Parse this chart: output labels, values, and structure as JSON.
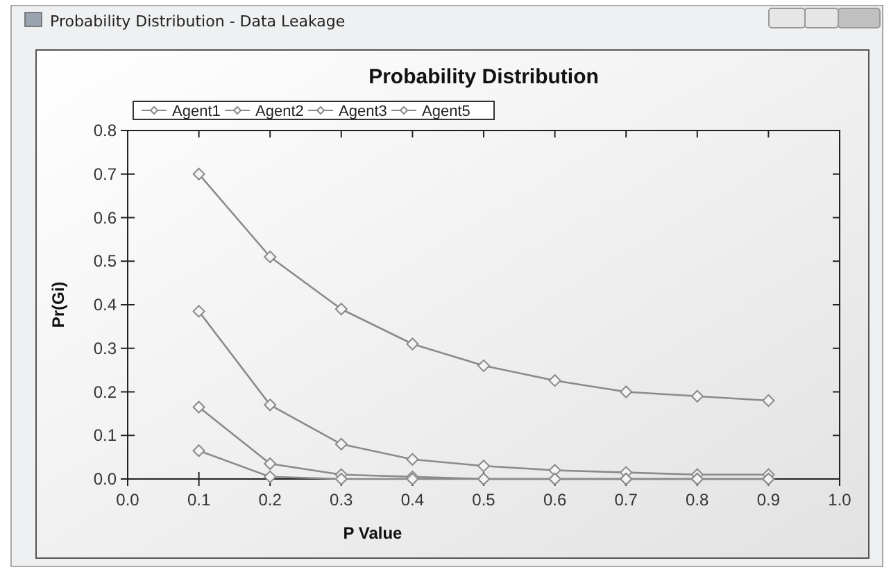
{
  "chart_data": {
    "type": "line",
    "title": "Probability Distribution",
    "xlabel": "P Value",
    "ylabel": "Pr(Gi)",
    "annotations": [
      "Probability Distribution - Data Leakage"
    ],
    "x": [
      0.1,
      0.2,
      0.3,
      0.4,
      0.5,
      0.6,
      0.7,
      0.8,
      0.9
    ],
    "series": [
      {
        "name": "Agent1",
        "color": "#8a8a8a",
        "values": [
          0.7,
          0.51,
          0.39,
          0.31,
          0.26,
          0.226,
          0.2,
          0.19,
          0.18
        ]
      },
      {
        "name": "Agent2",
        "color": "#8a8a8a",
        "values": [
          0.385,
          0.17,
          0.08,
          0.045,
          0.03,
          0.02,
          0.015,
          0.01,
          0.01
        ]
      },
      {
        "name": "Agent3",
        "color": "#8a8a8a",
        "values": [
          0.165,
          0.035,
          0.01,
          0.005,
          0,
          0,
          0,
          0,
          0
        ]
      },
      {
        "name": "Agent5",
        "color": "#8a8a8a",
        "values": [
          0.065,
          0.005,
          0,
          0,
          0,
          0,
          0,
          0,
          0
        ]
      }
    ],
    "xlim": [
      0,
      1
    ],
    "ylim": [
      0,
      0.8
    ],
    "xticks": [
      {
        "value": 0,
        "label": "0.0"
      },
      0.1,
      0.2,
      0.3,
      0.4,
      0.5,
      0.6,
      0.7,
      0.8,
      0.9,
      {
        "value": 1,
        "label": "1.0"
      }
    ],
    "yticks": [
      {
        "value": 0,
        "label": "0.0"
      },
      0.1,
      0.2,
      0.3,
      0.4,
      0.5,
      0.6,
      0.7,
      0.8
    ],
    "grid": false,
    "legend": "top",
    "marker": "diamond",
    "line_style": "solid"
  }
}
